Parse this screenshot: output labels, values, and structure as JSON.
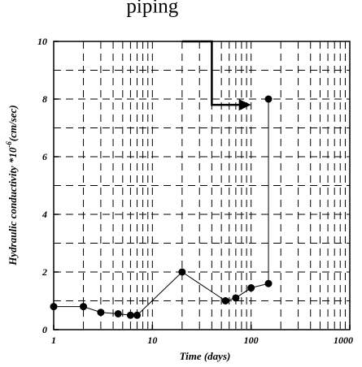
{
  "chart_data": {
    "type": "scatter",
    "title": "",
    "xlabel": "Time (days)",
    "ylabel_main": "Hydraulic conductivity *10",
    "ylabel_sup": "-6",
    "ylabel_unit": "(cm/sec)",
    "xscale": "log",
    "xlim": [
      1,
      1000
    ],
    "ylim": [
      0,
      10
    ],
    "grid": true,
    "x_tick_labels": [
      "1",
      "10",
      "100",
      "1000"
    ],
    "y_tick_labels": [
      "0",
      "2",
      "4",
      "6",
      "8",
      "10"
    ],
    "series": [
      {
        "x": [
          1,
          2,
          3,
          4.5,
          6,
          7,
          20,
          55,
          70,
          100,
          150,
          150
        ],
        "y": [
          0.8,
          0.8,
          0.6,
          0.55,
          0.5,
          0.5,
          2.0,
          1.0,
          1.1,
          1.45,
          1.6,
          8.0
        ]
      }
    ],
    "annotations": [
      {
        "text": "piping",
        "x": 10,
        "y": 11.0
      },
      {
        "type": "arrow",
        "path_x": [
          20,
          40,
          40,
          100
        ],
        "path_y": [
          10,
          10,
          7.8,
          7.8
        ]
      }
    ]
  }
}
